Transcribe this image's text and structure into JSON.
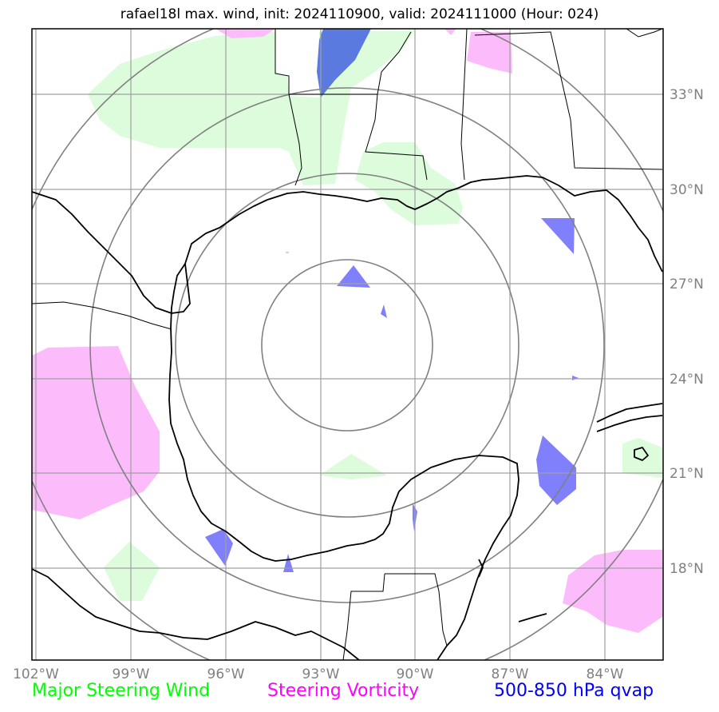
{
  "title": "rafael18l max. wind, init: 2024110900, valid: 2024111000 (Hour: 024)",
  "lat_labels": [
    "33°N",
    "30°N",
    "27°N",
    "24°N",
    "21°N",
    "18°N"
  ],
  "lon_labels": [
    "102°W",
    "99°W",
    "96°W",
    "93°W",
    "90°W",
    "87°W",
    "84°W"
  ],
  "legend": {
    "wind": {
      "label": "Major Steering Wind",
      "color": "#00ff00"
    },
    "vorticity": {
      "label": "Steering Vorticity",
      "color": "#ff00ff"
    },
    "qvap": {
      "label": "500-850 hPa qvap",
      "color": "#0000ff"
    }
  },
  "fill_colors": {
    "wind": "#dcfcdc",
    "vorticity": "#fcbcfc",
    "qvap_light": "#8080fc",
    "qvap_dark": "#5a7ae0"
  }
}
